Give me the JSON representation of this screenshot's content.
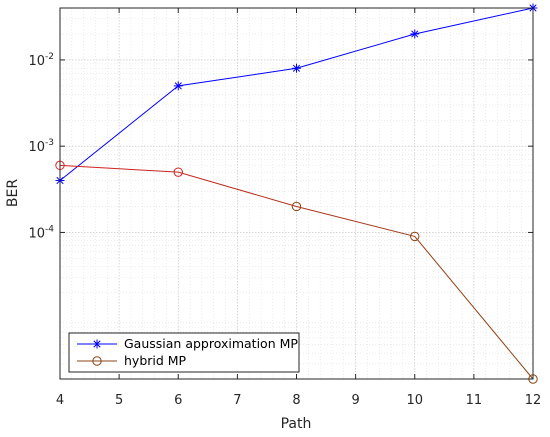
{
  "chart_data": {
    "type": "line",
    "title": "",
    "xlabel": "Path",
    "ylabel": "BER",
    "x_scale": "linear",
    "y_scale": "log",
    "xlim": [
      4,
      12
    ],
    "ylim": [
      2e-06,
      0.04
    ],
    "x_ticks": [
      4,
      5,
      6,
      7,
      8,
      9,
      10,
      11,
      12
    ],
    "x_tick_labels": [
      "4",
      "5",
      "6",
      "7",
      "8",
      "9",
      "10",
      "11",
      "12"
    ],
    "y_ticks": [
      {
        "value": 0.01,
        "base": "10",
        "exp": "-2"
      },
      {
        "value": 0.001,
        "base": "10",
        "exp": "-3"
      },
      {
        "value": 0.0001,
        "base": "10",
        "exp": "-4"
      }
    ],
    "grid": true,
    "minor_grid": true,
    "legend_position": "bottom-left",
    "series": [
      {
        "name": "Gaussian approximation MP",
        "color": "#0000ff",
        "marker": "asterisk",
        "x": [
          4,
          6,
          8,
          10,
          12
        ],
        "y": [
          0.0004,
          0.005,
          0.008,
          0.02,
          0.04
        ]
      },
      {
        "name": "hybrid MP",
        "color_start": "#d62020",
        "color_end": "#8b4513",
        "marker": "circle",
        "x": [
          4,
          6,
          8,
          10,
          12
        ],
        "y": [
          0.0006,
          0.0005,
          0.0002,
          9e-05,
          2e-06
        ]
      }
    ]
  }
}
